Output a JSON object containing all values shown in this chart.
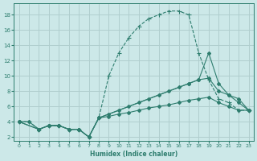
{
  "bg_color": "#cce8e8",
  "grid_color": "#b0cece",
  "line_color": "#2e7d6e",
  "xlabel": "Humidex (Indice chaleur)",
  "xlim": [
    -0.5,
    23.5
  ],
  "ylim": [
    1.5,
    19.5
  ],
  "xticks": [
    0,
    1,
    2,
    3,
    4,
    5,
    6,
    7,
    8,
    9,
    10,
    11,
    12,
    13,
    14,
    15,
    16,
    17,
    18,
    19,
    20,
    21,
    22,
    23
  ],
  "yticks": [
    2,
    4,
    6,
    8,
    10,
    12,
    14,
    16,
    18
  ],
  "curve1_x": [
    0,
    1,
    2,
    3,
    4,
    5,
    6,
    7,
    8,
    9,
    10,
    11,
    12,
    13,
    14,
    15,
    16,
    17,
    18,
    19,
    20,
    21,
    22,
    23
  ],
  "curve1_y": [
    4,
    4,
    3,
    3.5,
    3.5,
    3,
    3,
    2,
    4.5,
    10,
    13,
    15,
    16.5,
    17.5,
    18,
    18.5,
    18.5,
    18,
    13,
    9.5,
    7,
    6.5,
    5.5,
    5.5
  ],
  "curve2_x": [
    0,
    2,
    3,
    4,
    5,
    6,
    7,
    8,
    17,
    18,
    19,
    20,
    21,
    22,
    23
  ],
  "curve2_y": [
    4,
    3,
    3.5,
    3.5,
    3,
    3,
    2,
    4.5,
    9,
    9.5,
    13,
    9,
    7.5,
    7,
    5.5
  ],
  "curve3_x": [
    0,
    2,
    3,
    4,
    5,
    6,
    7,
    8,
    9,
    10,
    11,
    12,
    13,
    14,
    15,
    16,
    17,
    18,
    19,
    20,
    21,
    22,
    23
  ],
  "curve3_y": [
    4,
    3,
    3.5,
    3.5,
    3,
    3,
    2,
    4.5,
    5,
    5.5,
    6,
    6.5,
    7,
    7.5,
    8,
    8.5,
    9,
    9.5,
    9.7,
    8,
    7.5,
    6.5,
    5.5
  ],
  "curve4_x": [
    0,
    1,
    2,
    3,
    4,
    5,
    6,
    7,
    8,
    9,
    10,
    11,
    12,
    13,
    14,
    15,
    16,
    17,
    18,
    19,
    20,
    21,
    22,
    23
  ],
  "curve4_y": [
    4,
    4,
    3,
    3.5,
    3.5,
    3,
    3,
    2,
    4.5,
    4.7,
    5,
    5.2,
    5.5,
    5.8,
    6,
    6.2,
    6.5,
    6.8,
    7,
    7.2,
    6.5,
    6,
    5.5,
    5.5
  ]
}
